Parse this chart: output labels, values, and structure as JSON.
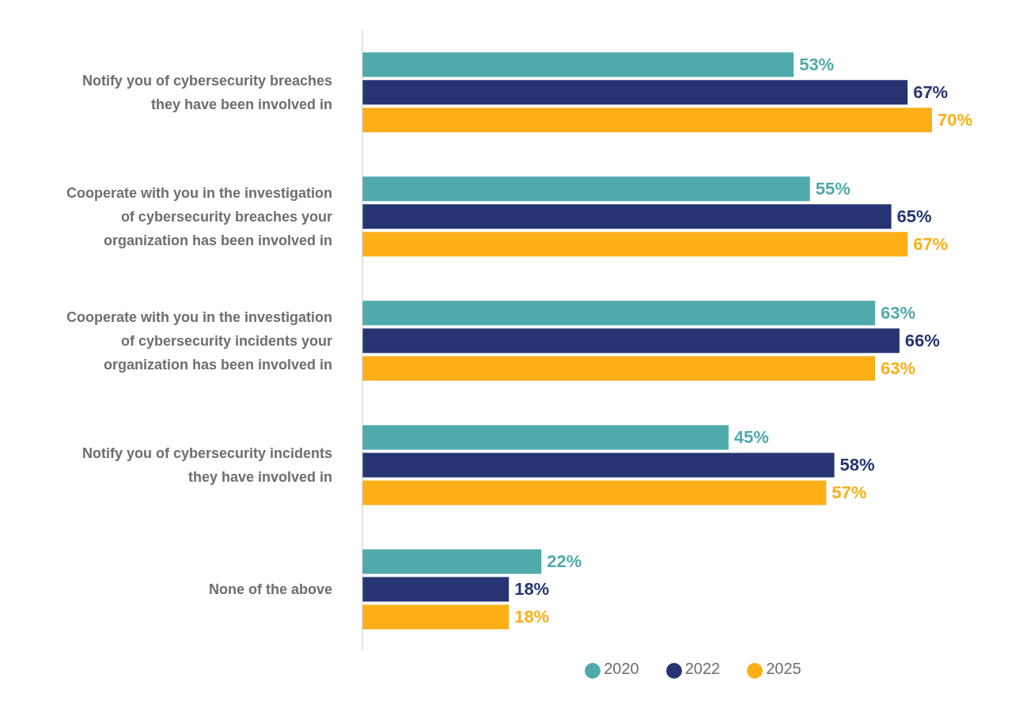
{
  "chart_data": {
    "type": "bar",
    "orientation": "horizontal",
    "categories": [
      "Notify you of cybersecurity breaches they have been involved in",
      "Cooperate with you in the investigation of cybersecurity breaches your organization has been involved in",
      "Cooperate with you in the investigation of cybersecurity incidents your organization has been involved in",
      "Notify you of cybersecurity incidents they have involved in",
      "None of the above"
    ],
    "series": [
      {
        "name": "2020",
        "color": "#4faaac",
        "values": [
          53,
          55,
          63,
          45,
          22
        ],
        "value_labels": [
          "53%",
          "55%",
          "63%",
          "45%",
          "22%"
        ]
      },
      {
        "name": "2022",
        "color": "#263472",
        "values": [
          67,
          65,
          66,
          58,
          18
        ],
        "value_labels": [
          "67%",
          "65%",
          "66%",
          "58%",
          "18%"
        ]
      },
      {
        "name": "2025",
        "color": "#fcaf17",
        "values": [
          70,
          67,
          63,
          57,
          18
        ],
        "value_labels": [
          "70%",
          "67%",
          "63%",
          "57%",
          "18%"
        ]
      }
    ],
    "xlim": [
      0,
      70
    ],
    "tick_labels": "y",
    "legend": "bottom"
  }
}
